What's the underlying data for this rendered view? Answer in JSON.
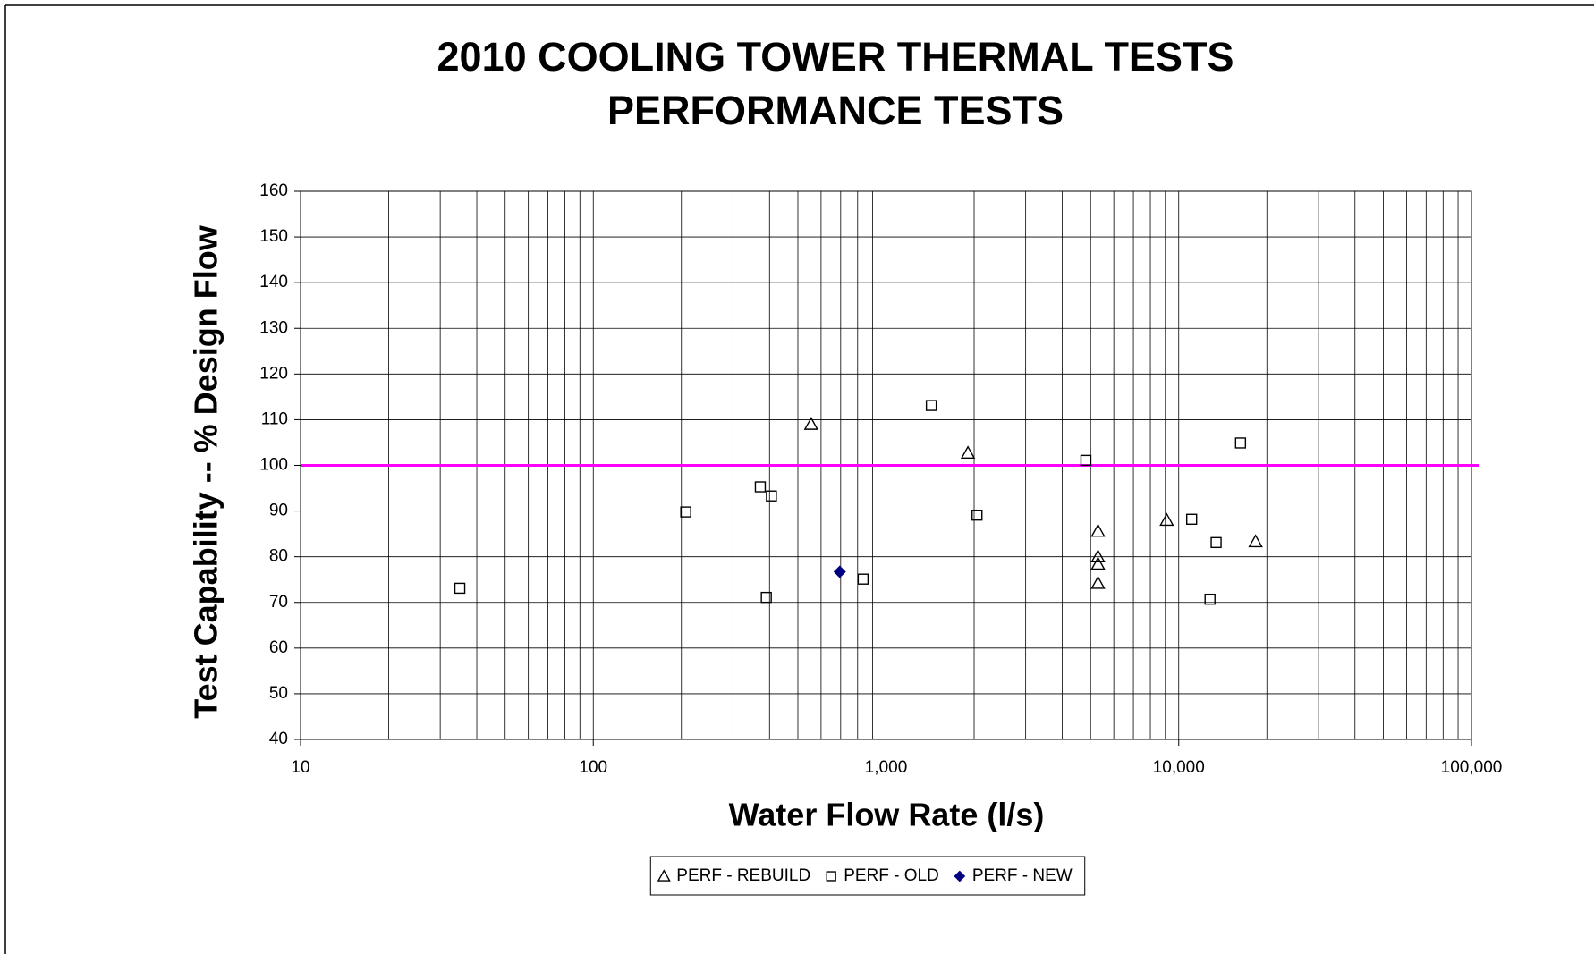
{
  "chart_data": {
    "type": "scatter",
    "title": "2010 COOLING TOWER THERMAL TESTS",
    "subtitle": "PERFORMANCE TESTS",
    "x_label": "Water Flow Rate (l/s)",
    "y_label": "Test Capability -- % Design Flow",
    "x_log_scale": true,
    "grid": true,
    "legend": "bottom",
    "xlim": [
      10,
      100000
    ],
    "xticks": [
      10,
      100,
      {
        "value": 1000,
        "label": "1,000"
      },
      {
        "value": 10000,
        "label": "10,000"
      },
      {
        "value": 100000,
        "label": "100,000"
      }
    ],
    "ylim": [
      40,
      160
    ],
    "yticks": [
      40,
      50,
      60,
      70,
      80,
      90,
      100,
      110,
      120,
      130,
      140,
      150,
      160
    ],
    "reference_lines": [
      {
        "value": 100,
        "color": "#ff00ff"
      }
    ],
    "series": [
      {
        "name": "PERF - REBUILD",
        "marker": "triangle",
        "color": "#000000",
        "fill": "none",
        "x": [
          555,
          1905,
          5300,
          5300,
          5300,
          5300,
          9100,
          18300
        ],
        "values": [
          109,
          102.7,
          85.6,
          80,
          78.4,
          74.2,
          88,
          83.3
        ]
      },
      {
        "name": "PERF - OLD",
        "marker": "square",
        "color": "#000000",
        "fill": "none",
        "x": [
          35,
          207,
          372,
          406,
          390,
          835,
          1428,
          2046,
          4818,
          11070,
          13420,
          12790,
          16260
        ],
        "values": [
          73.1,
          89.8,
          95.3,
          93.3,
          71.1,
          75.1,
          113.1,
          89.1,
          101.1,
          88.2,
          83.1,
          70.7,
          104.9
        ]
      },
      {
        "name": "PERF - NEW",
        "marker": "diamond",
        "color": "#000080",
        "fill": "#000080",
        "x": [
          695
        ],
        "values": [
          76.7
        ]
      }
    ]
  }
}
